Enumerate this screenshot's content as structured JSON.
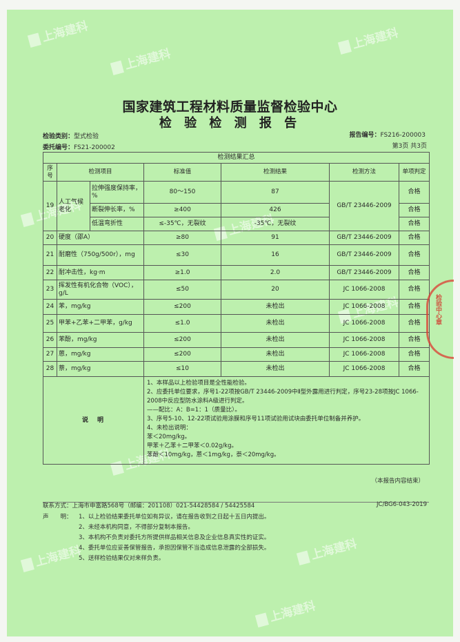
{
  "header": {
    "org": "国家建筑工程材料质量监督检验中心",
    "title": "检 验 检 测 报 告",
    "test_type_label": "检验类别：",
    "test_type": "型式检验",
    "commission_label": "委托编号：",
    "commission_no": "FS21-200002",
    "report_label": "报告编号：",
    "report_no": "FS216-200003",
    "page": "第3页 共3页"
  },
  "watermark": "上海建科",
  "table": {
    "caption": "检测结果汇总",
    "columns": [
      "序号",
      "检测项目",
      "标准值",
      "检测结果",
      "检测方法",
      "单项判定"
    ],
    "row19": {
      "no": "19",
      "group": "人工气候老化",
      "subs": [
        {
          "item": "拉伸强度保持率，%",
          "std": "80～150",
          "result": "87",
          "verdict": "合格"
        },
        {
          "item": "断裂伸长率，%",
          "std": "≥400",
          "result": "426",
          "verdict": "合格"
        },
        {
          "item": "低温弯折性",
          "std": "≤-35℃，无裂纹",
          "result": "-35℃，无裂纹",
          "verdict": "合格"
        }
      ],
      "method": "GB/T 23446-2009"
    },
    "rows": [
      {
        "no": "20",
        "item": "硬度（邵A）",
        "std": "≥80",
        "result": "91",
        "method": "GB/T 23446-2009",
        "verdict": "合格"
      },
      {
        "no": "21",
        "item": "耐磨性（750g/500r），mg",
        "std": "≤30",
        "result": "16",
        "method": "GB/T 23446-2009",
        "verdict": "合格"
      },
      {
        "no": "22",
        "item": "耐冲击性，kg·m",
        "std": "≥1.0",
        "result": "2.0",
        "method": "GB/T 23446-2009",
        "verdict": "合格"
      },
      {
        "no": "23",
        "item": "挥发性有机化合物（VOC），g/L",
        "std": "≤50",
        "result": "20",
        "method": "JC 1066-2008",
        "verdict": "合格"
      },
      {
        "no": "24",
        "item": "苯，mg/kg",
        "std": "≤200",
        "result": "未检出",
        "method": "JC 1066-2008",
        "verdict": "合格"
      },
      {
        "no": "25",
        "item": "甲苯+乙苯+二甲苯，g/kg",
        "std": "≤1.0",
        "result": "未检出",
        "method": "JC 1066-2008",
        "verdict": "合格"
      },
      {
        "no": "26",
        "item": "苯酚，mg/kg",
        "std": "≤200",
        "result": "未检出",
        "method": "JC 1066-2008",
        "verdict": "合格"
      },
      {
        "no": "27",
        "item": "蒽，mg/kg",
        "std": "≤200",
        "result": "未检出",
        "method": "JC 1066-2008",
        "verdict": "合格"
      },
      {
        "no": "28",
        "item": "萘，mg/kg",
        "std": "≤10",
        "result": "未检出",
        "method": "JC 1066-2008",
        "verdict": "合格"
      }
    ],
    "notes_label": "说　明",
    "notes": [
      "1、本样品以上检验项目是全性能检验。",
      "2、应委托单位要求，序号1-22项按GB/T 23446-2009中Ⅱ型外露用进行判定，序号23-28项按JC 1066-2008中反应型防水涂料A级进行判定。",
      "——配比：A：B=1：1（质量比）。",
      "3、序号5-10、12-22项试验用涂膜和序号11项试验用试块由委托单位制备并养护。",
      "4、未检出说明：",
      "苯＜20mg/kg。",
      "甲苯＋乙苯＋二甲苯＜0.02g/kg。",
      "苯酚＜10mg/kg，蒽＜1mg/kg，萘＜20mg/kg。"
    ]
  },
  "end_note": "（本报告内容结束）",
  "footer": {
    "contact": "联系方式：上海市申富路568号（邮编：201108）021-54428584 / 54425584",
    "doc_code": "JC/BG6-043-2019",
    "statement_label": "声　　明：",
    "statements": [
      "1、以上检验结果委托单位如有异议，请在报告收到之日起十五日内提出。",
      "2、未经本机构同意，不得部分复制本报告。",
      "3、本机构不负责对委托方所提供样品相关信息及企业信息真实性的证实。",
      "4、委托单位应妥善保管报告，承担因保管不当造成信息泄露的全部损失。",
      "5、送样检验结果仅对来样负责。"
    ]
  },
  "stamp": "检验中心章",
  "colors": {
    "paper": "#bdf0ae",
    "stamp": "#d23c30"
  }
}
